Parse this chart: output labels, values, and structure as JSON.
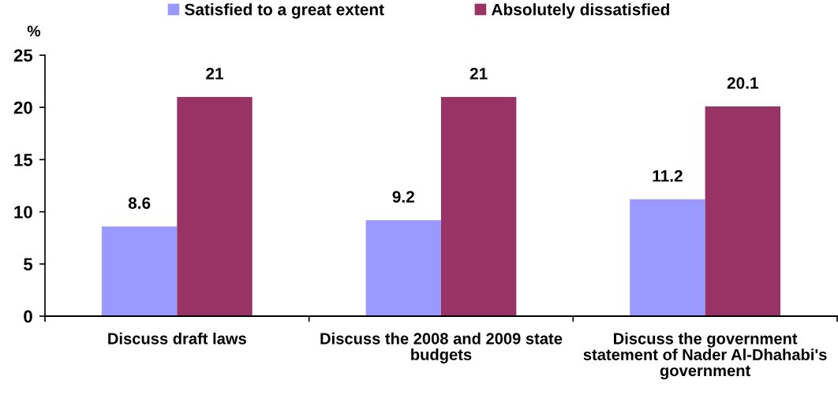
{
  "chart_data": {
    "type": "bar",
    "categories": [
      "Discuss draft laws",
      "Discuss the 2008 and 2009 state\nbudgets",
      "Discuss the government\nstatement of Nader Al-Dhahabi's\ngovernment"
    ],
    "series": [
      {
        "name": "Satisfied to a great extent",
        "color": "#9999ff",
        "values": [
          8.6,
          9.2,
          11.2
        ]
      },
      {
        "name": "Absolutely dissatisfied",
        "color": "#993366",
        "values": [
          21,
          21,
          20.1
        ]
      }
    ],
    "ylabel": "%",
    "ylim": [
      0,
      25
    ],
    "yticks": [
      0,
      5,
      10,
      15,
      20,
      25
    ],
    "data_labels": true,
    "legend": "top",
    "grid": false
  }
}
